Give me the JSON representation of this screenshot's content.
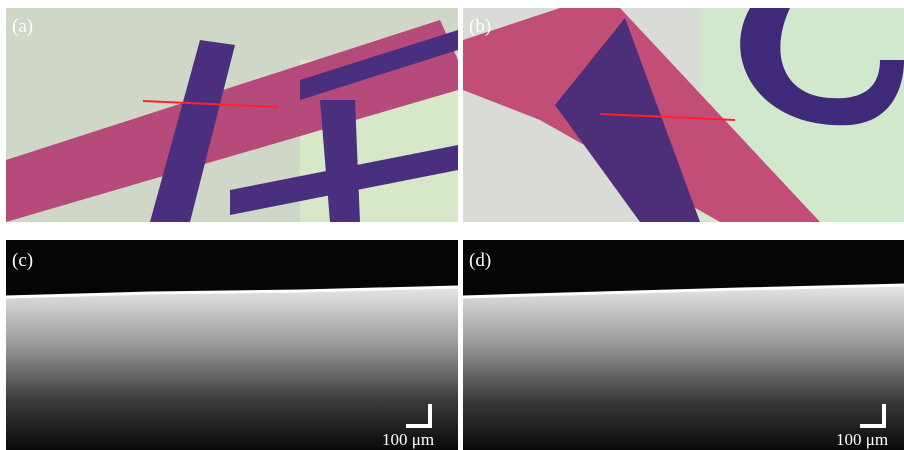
{
  "panels": [
    {
      "label": "(a)"
    },
    {
      "label": "(b)"
    },
    {
      "label": "(c)",
      "scale_bar": "100 μm"
    },
    {
      "label": "(d)",
      "scale_bar": "100 μm"
    }
  ]
}
